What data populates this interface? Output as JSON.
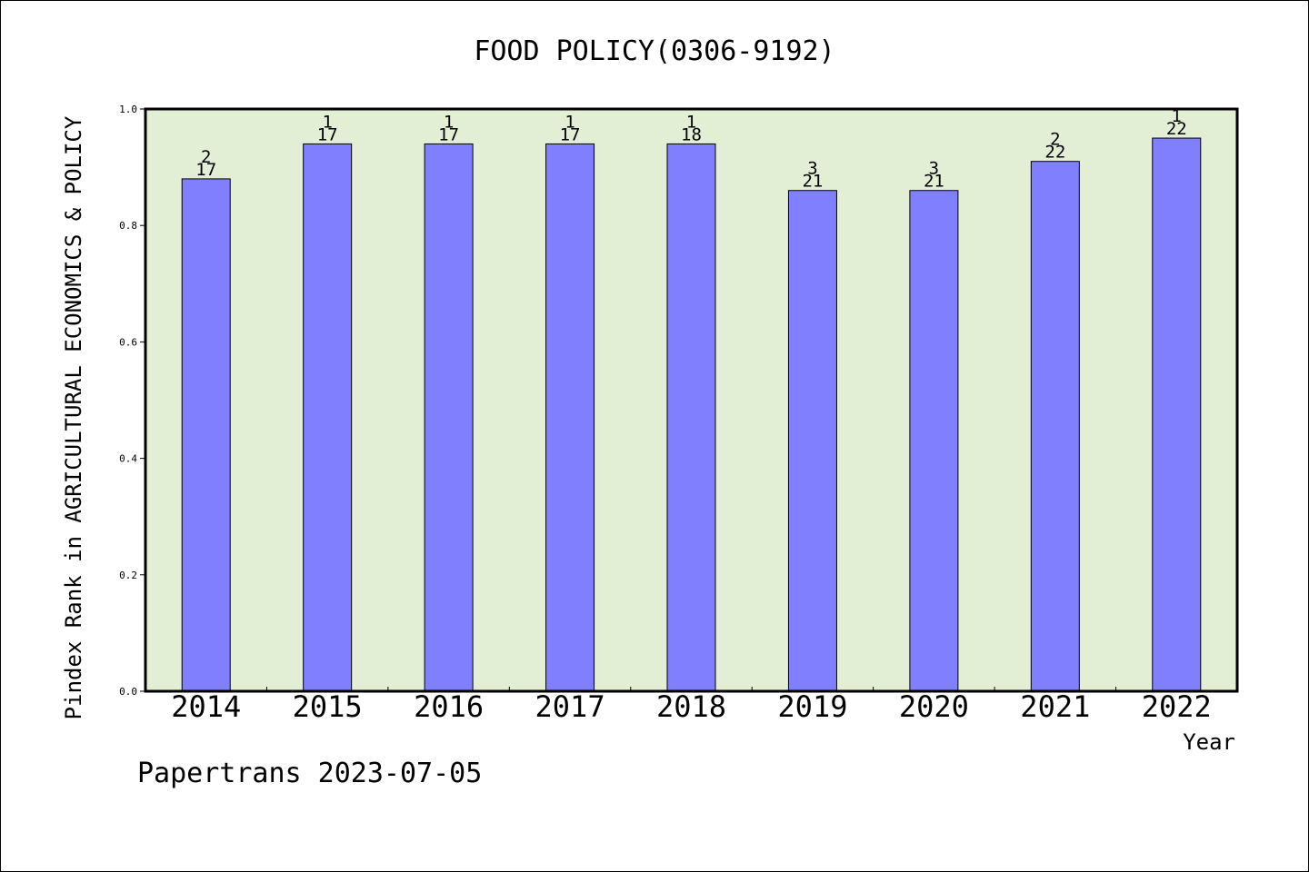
{
  "chart_data": {
    "type": "bar",
    "title": "FOOD POLICY(0306-9192)",
    "xlabel": "Year",
    "ylabel": "Pindex Rank in AGRICULTURAL ECONOMICS & POLICY",
    "ylim": [
      0,
      1.0
    ],
    "yticks": [
      "0.0",
      "0.2",
      "0.4",
      "0.6",
      "0.8",
      "1.0"
    ],
    "grid": false,
    "categories": [
      "2014",
      "2015",
      "2016",
      "2017",
      "2018",
      "2019",
      "2020",
      "2021",
      "2022"
    ],
    "values": [
      0.88,
      0.94,
      0.94,
      0.94,
      0.94,
      0.86,
      0.86,
      0.91,
      0.95
    ],
    "rank_labels": [
      "2",
      "1",
      "1",
      "1",
      "1",
      "3",
      "3",
      "2",
      "1"
    ],
    "total_labels": [
      "17",
      "17",
      "17",
      "17",
      "18",
      "21",
      "21",
      "22",
      "22"
    ],
    "colors": {
      "bar": "#8080ff",
      "plot_bg": "#e2efd5",
      "axis": "#000000"
    }
  },
  "footer": {
    "note": "Papertrans 2023-07-05"
  }
}
